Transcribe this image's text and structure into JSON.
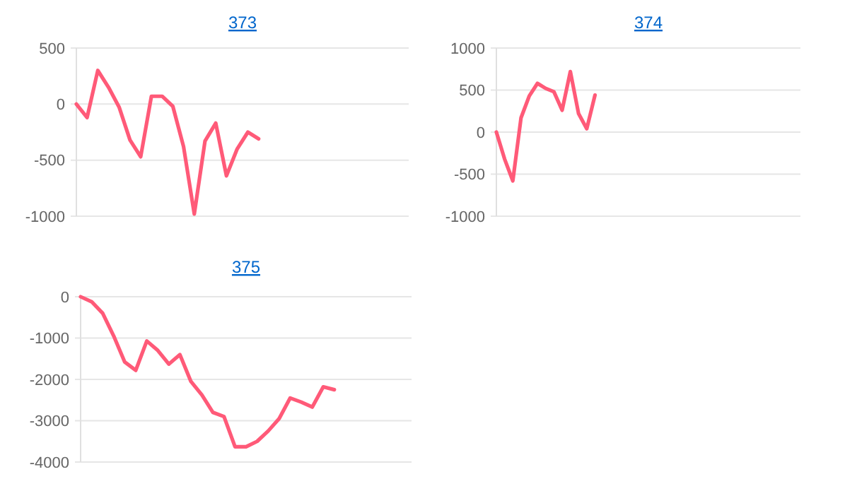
{
  "chart_data": [
    {
      "type": "line",
      "title": "373",
      "categories": [
        null,
        null,
        null,
        null,
        null,
        null,
        null,
        null,
        null,
        null,
        null,
        null,
        null,
        null,
        null,
        null,
        null,
        null,
        null,
        null,
        null,
        null,
        null,
        null,
        null,
        null,
        null,
        null,
        null,
        null,
        null,
        null
      ],
      "series": [
        {
          "color": "#ff5a78",
          "values": [
            0,
            -120,
            300,
            150,
            -30,
            -320,
            -470,
            70,
            70,
            -20,
            -380,
            -980,
            -330,
            -170,
            -640,
            -400,
            -250,
            -310,
            null,
            null,
            null,
            null,
            null,
            null,
            null,
            null,
            null,
            null,
            null,
            null,
            null,
            null
          ]
        }
      ],
      "ylim": [
        -1000,
        500
      ],
      "yticks": [
        500,
        0,
        -500,
        -1000
      ],
      "grid": "y",
      "marker": "none"
    },
    {
      "type": "line",
      "title": "374",
      "categories": [
        null,
        null,
        null,
        null,
        null,
        null,
        null,
        null,
        null,
        null,
        null,
        null,
        null,
        null,
        null,
        null,
        null,
        null,
        null,
        null,
        null,
        null,
        null,
        null,
        null,
        null,
        null,
        null,
        null,
        null,
        null,
        null,
        null,
        null,
        null,
        null,
        null,
        null
      ],
      "series": [
        {
          "color": "#ff5a78",
          "values": [
            0,
            -320,
            -580,
            170,
            430,
            580,
            520,
            480,
            260,
            720,
            220,
            40,
            440,
            null,
            null,
            null,
            null,
            null,
            null,
            null,
            null,
            null,
            null,
            null,
            null,
            null,
            null,
            null,
            null,
            null,
            null,
            null,
            null,
            null,
            null,
            null,
            null,
            null
          ]
        }
      ],
      "ylim": [
        -1000,
        1000
      ],
      "yticks": [
        1000,
        500,
        0,
        -500,
        -1000
      ],
      "grid": "y",
      "marker": "none"
    },
    {
      "type": "line",
      "title": "375",
      "categories": [
        null,
        null,
        null,
        null,
        null,
        null,
        null,
        null,
        null,
        null,
        null,
        null,
        null,
        null,
        null,
        null,
        null,
        null,
        null,
        null,
        null,
        null,
        null,
        null,
        null,
        null,
        null,
        null,
        null,
        null,
        null
      ],
      "series": [
        {
          "color": "#ff5a78",
          "values": [
            0,
            -120,
            -400,
            -950,
            -1580,
            -1780,
            -1070,
            -1300,
            -1630,
            -1400,
            -2050,
            -2380,
            -2800,
            -2900,
            -3630,
            -3630,
            -3500,
            -3250,
            -2950,
            -2450,
            -2550,
            -2670,
            -2180,
            -2250,
            null,
            null,
            null,
            null,
            null,
            null,
            null
          ]
        }
      ],
      "ylim": [
        -4000,
        0
      ],
      "yticks": [
        0,
        -1000,
        -2000,
        -3000,
        -4000
      ],
      "grid": "y",
      "marker": "none"
    }
  ]
}
